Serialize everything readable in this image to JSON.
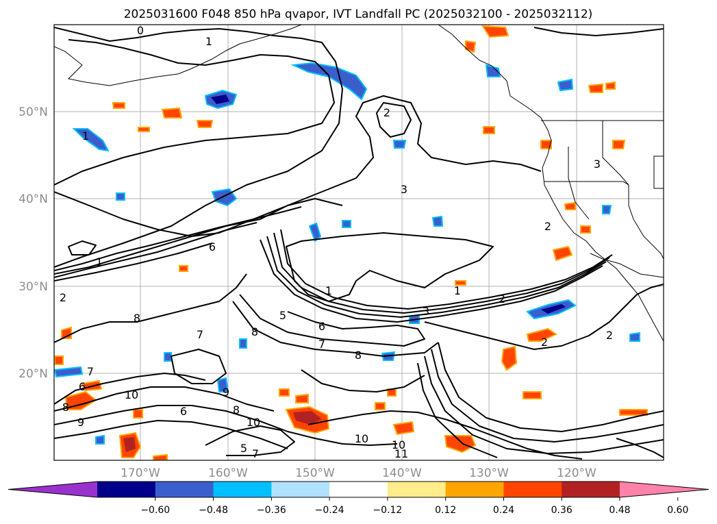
{
  "title": "2025031600 F048 850 hPa qvapor, IVT Landfall PC (2025032100 - 2025032112)",
  "lat_labels": [
    "50°N",
    "40°N",
    "30°N",
    "20°N"
  ],
  "lon_labels": [
    "170°W",
    "160°W",
    "150°W",
    "140°W",
    "130°W",
    "120°W"
  ],
  "colorbar": {
    "colors": [
      "#9932CC",
      "#00008B",
      "#3A5FCD",
      "#00BFFF",
      "#B0E2FF",
      "#FFFFFF",
      "#FFEC8B",
      "#FFA500",
      "#FF4500",
      "#B22222",
      "#FF82AB"
    ],
    "tick_labels": [
      "−0.60",
      "−0.48",
      "−0.36",
      "−0.24",
      "−0.12",
      "0.12",
      "0.24",
      "0.36",
      "0.48",
      "0.60"
    ]
  },
  "contour_labels": [
    "0",
    "1",
    "1",
    "1",
    "1",
    "1",
    "2",
    "2",
    "2",
    "2",
    "2",
    "2",
    "3",
    "3",
    "3",
    "5",
    "5",
    "6",
    "6",
    "6",
    "6",
    "7",
    "7",
    "7",
    "7",
    "8",
    "8",
    "8",
    "8",
    "8",
    "9",
    "9",
    "10",
    "10",
    "10",
    "10",
    "11"
  ]
}
